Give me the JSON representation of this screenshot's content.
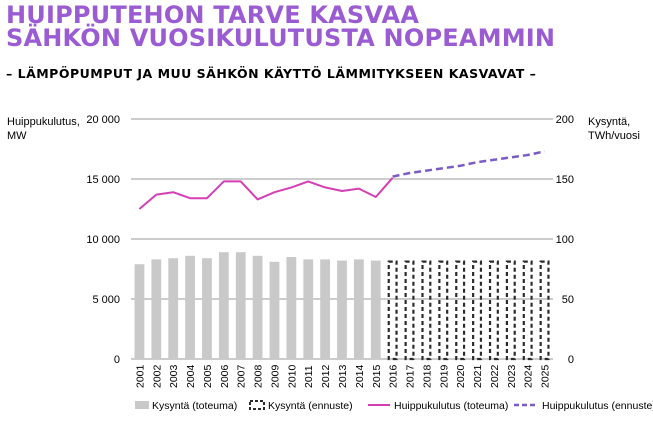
{
  "header": {
    "title_line1": "HUIPPUTEHON TARVE KASVAA",
    "title_line2": "SÄHKÖN VUOSIKULUTUSTA NOPEAMMIN",
    "subtitle": "– LÄMPÖPUMPUT JA MUU SÄHKÖN KÄYTTÖ LÄMMITYKSEEN KASVAVAT –"
  },
  "colors": {
    "title": "#9a5bd3",
    "bar_actual": "#c9c9c9",
    "bar_forecast": "#2b2b2b",
    "line_actual": "#d63fb4",
    "line_forecast": "#7b5cc4",
    "grid": "#9a9a9a"
  },
  "chart_data": {
    "type": "bar+line",
    "categories": [
      "2001",
      "2002",
      "2003",
      "2004",
      "2005",
      "2006",
      "2007",
      "2008",
      "2009",
      "2010",
      "2011",
      "2012",
      "2013",
      "2014",
      "2015",
      "2016",
      "2017",
      "2018",
      "2019",
      "2020",
      "2021",
      "2022",
      "2023",
      "2024",
      "2025"
    ],
    "left_axis": {
      "label_line1": "Huippukulutus,",
      "label_line2": "MW",
      "range": [
        0,
        20000
      ],
      "ticks": [
        0,
        5000,
        10000,
        15000,
        20000
      ],
      "tick_labels": [
        "0",
        "5 000",
        "10 000",
        "15 000",
        "20 000"
      ]
    },
    "right_axis": {
      "label_line1": "Kysyntä,",
      "label_line2": "TWh/vuosi",
      "range": [
        0,
        200
      ],
      "ticks": [
        0,
        50,
        100,
        150,
        200
      ],
      "tick_labels": [
        "0",
        "50",
        "100",
        "150",
        "200"
      ]
    },
    "series": [
      {
        "name": "Kysyntä (toteuma)",
        "kind": "bar",
        "axis": "right",
        "values": [
          79,
          83,
          84,
          86,
          84,
          89,
          89,
          86,
          81,
          85,
          83,
          83,
          82,
          83,
          82,
          null,
          null,
          null,
          null,
          null,
          null,
          null,
          null,
          null,
          null
        ]
      },
      {
        "name": "Kysyntä (ennuste)",
        "kind": "bar-dashed",
        "axis": "right",
        "values": [
          null,
          null,
          null,
          null,
          null,
          null,
          null,
          null,
          null,
          null,
          null,
          null,
          null,
          null,
          null,
          82,
          82,
          82,
          82,
          82,
          82,
          82,
          82,
          82,
          82
        ]
      },
      {
        "name": "Huippukulutus (toteuma)",
        "kind": "line",
        "axis": "left",
        "values": [
          12500,
          13700,
          13900,
          13400,
          13400,
          14800,
          14800,
          13300,
          13900,
          14300,
          14800,
          14300,
          14000,
          14200,
          13500,
          15100,
          null,
          null,
          null,
          null,
          null,
          null,
          null,
          null,
          null
        ]
      },
      {
        "name": "Huippukulutus (ennuste)",
        "kind": "line-dashed",
        "axis": "left",
        "values": [
          null,
          null,
          null,
          null,
          null,
          null,
          null,
          null,
          null,
          null,
          null,
          null,
          null,
          null,
          null,
          15200,
          15500,
          15700,
          15900,
          16100,
          16400,
          16600,
          16800,
          17000,
          17300
        ]
      }
    ]
  }
}
